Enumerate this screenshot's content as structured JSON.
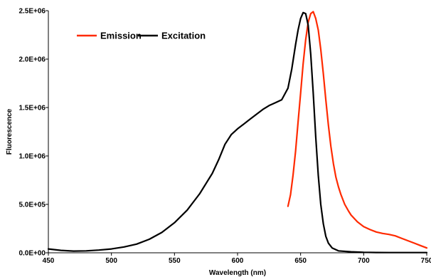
{
  "chart_data": {
    "type": "line",
    "title": "",
    "xlabel": "Wavelength (nm)",
    "ylabel": "Fluorescence",
    "xlim": [
      450,
      750
    ],
    "ylim": [
      0,
      2500000
    ],
    "x_ticks": [
      450,
      500,
      550,
      600,
      650,
      700,
      750
    ],
    "x_tick_labels": [
      "450",
      "500",
      "550",
      "600",
      "650",
      "700",
      "750"
    ],
    "y_ticks": [
      0,
      500000,
      1000000,
      1500000,
      2000000,
      2500000
    ],
    "y_tick_labels": [
      "0.0E+00",
      "5.0E+05",
      "1.0E+06",
      "1.5E+06",
      "2.0E+06",
      "2.5E+06"
    ],
    "grid": false,
    "legend_position": "top-left",
    "series": [
      {
        "name": "Emission",
        "color": "#ff2a00",
        "x": [
          640,
          642,
          644,
          646,
          648,
          650,
          652,
          654,
          656,
          658,
          660,
          662,
          664,
          666,
          668,
          670,
          672,
          674,
          676,
          678,
          680,
          682,
          685,
          688,
          690,
          695,
          700,
          705,
          710,
          715,
          720,
          725,
          730,
          735,
          740,
          745,
          750
        ],
        "y": [
          480000,
          600000,
          800000,
          1050000,
          1350000,
          1650000,
          1950000,
          2200000,
          2380000,
          2470000,
          2490000,
          2420000,
          2300000,
          2100000,
          1850000,
          1580000,
          1320000,
          1100000,
          920000,
          780000,
          680000,
          600000,
          500000,
          430000,
          390000,
          320000,
          270000,
          240000,
          215000,
          200000,
          190000,
          175000,
          150000,
          125000,
          100000,
          75000,
          50000
        ]
      },
      {
        "name": "Excitation",
        "color": "#000000",
        "x": [
          450,
          460,
          470,
          480,
          490,
          500,
          510,
          520,
          530,
          540,
          550,
          560,
          570,
          580,
          585,
          590,
          595,
          600,
          605,
          610,
          615,
          620,
          625,
          630,
          635,
          640,
          643,
          646,
          648,
          650,
          652,
          654,
          656,
          658,
          660,
          662,
          664,
          666,
          668,
          670,
          672,
          675,
          680,
          690,
          700,
          710,
          720,
          730,
          740,
          750
        ],
        "y": [
          40000,
          25000,
          18000,
          20000,
          28000,
          40000,
          60000,
          90000,
          140000,
          210000,
          310000,
          440000,
          610000,
          820000,
          960000,
          1120000,
          1220000,
          1280000,
          1330000,
          1380000,
          1430000,
          1480000,
          1520000,
          1550000,
          1580000,
          1700000,
          1900000,
          2150000,
          2300000,
          2420000,
          2480000,
          2470000,
          2350000,
          2050000,
          1650000,
          1200000,
          800000,
          500000,
          300000,
          170000,
          100000,
          50000,
          20000,
          10000,
          5000,
          3000,
          2000,
          2000,
          2000,
          2000
        ]
      }
    ]
  }
}
